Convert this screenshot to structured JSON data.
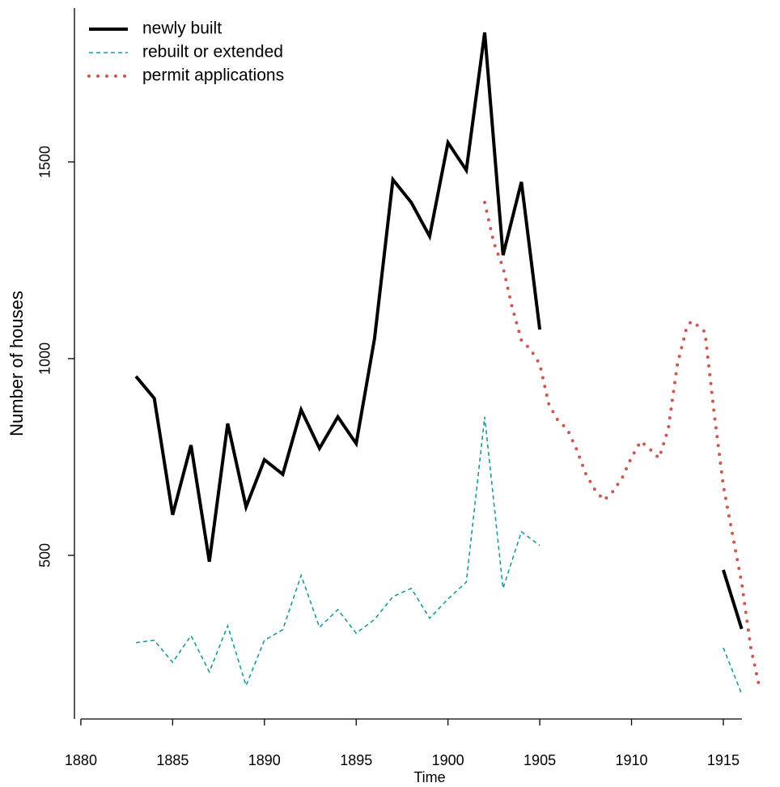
{
  "chart_data": {
    "type": "line",
    "x_label": "Time",
    "y_label": "Number of houses",
    "xlim": [
      1879.65,
      1918
    ],
    "ylim": [
      84,
      1891
    ],
    "xticks": [
      1880,
      1885,
      1890,
      1895,
      1900,
      1905,
      1910,
      1915
    ],
    "yticks": [
      500,
      1000,
      1500
    ],
    "grid": false,
    "legend": "top-left",
    "series": [
      {
        "name": "newly built",
        "color": "#000000",
        "line_style": "solid",
        "line_width": 4,
        "x": [
          1883,
          1884,
          1885,
          1886,
          1887,
          1888,
          1889,
          1890,
          1891,
          1892,
          1893,
          1894,
          1895,
          1896,
          1897,
          1898,
          1899,
          1900,
          1901,
          1902,
          1903,
          1904,
          1905,
          1906,
          1907,
          1908,
          1909,
          1910,
          1911,
          1912,
          1913,
          1914,
          1915,
          1916
        ],
        "values": [
          955,
          899,
          603,
          780,
          484,
          835,
          623,
          743,
          706,
          870,
          772,
          852,
          784,
          1051,
          1455,
          1397,
          1311,
          1549,
          1479,
          1829,
          1263,
          1449,
          1074,
          null,
          null,
          null,
          null,
          null,
          null,
          null,
          null,
          null,
          463,
          313
        ]
      },
      {
        "name": "rebuilt or extended",
        "color": "#1a9a9a",
        "line_style": "dashed",
        "line_width": 1.6,
        "x": [
          1883,
          1884,
          1885,
          1886,
          1887,
          1888,
          1889,
          1890,
          1891,
          1892,
          1893,
          1894,
          1895,
          1896,
          1897,
          1898,
          1899,
          1900,
          1901,
          1902,
          1903,
          1904,
          1905,
          1906,
          1907,
          1908,
          1909,
          1910,
          1911,
          1912,
          1913,
          1914,
          1915,
          1916
        ],
        "values": [
          278,
          284,
          228,
          296,
          204,
          321,
          169,
          284,
          311,
          449,
          317,
          362,
          302,
          337,
          395,
          416,
          340,
          389,
          432,
          852,
          416,
          560,
          525,
          null,
          null,
          null,
          null,
          null,
          null,
          null,
          null,
          null,
          265,
          148
        ]
      },
      {
        "name": "permit applications",
        "color": "#d0564f",
        "line_style": "dotted",
        "line_width": 4,
        "x": [
          1902,
          1902.5,
          1903,
          1903.5,
          1904,
          1904.5,
          1905,
          1905.5,
          1906,
          1906.5,
          1907,
          1907.5,
          1908,
          1908.5,
          1909,
          1909.5,
          1910,
          1910.5,
          1911,
          1911.5,
          1912,
          1912.5,
          1913,
          1913.25,
          1913.5,
          1914,
          1914.5,
          1915,
          1915.5,
          1916,
          1916.5,
          1917
        ],
        "values": [
          1397,
          1294,
          1232,
          1130,
          1047,
          1023,
          986,
          883,
          842,
          821,
          770,
          708,
          667,
          640,
          663,
          698,
          749,
          790,
          770,
          747,
          821,
          986,
          1078,
          1095,
          1088,
          1068,
          862,
          677,
          553,
          430,
          265,
          158
        ]
      }
    ]
  }
}
